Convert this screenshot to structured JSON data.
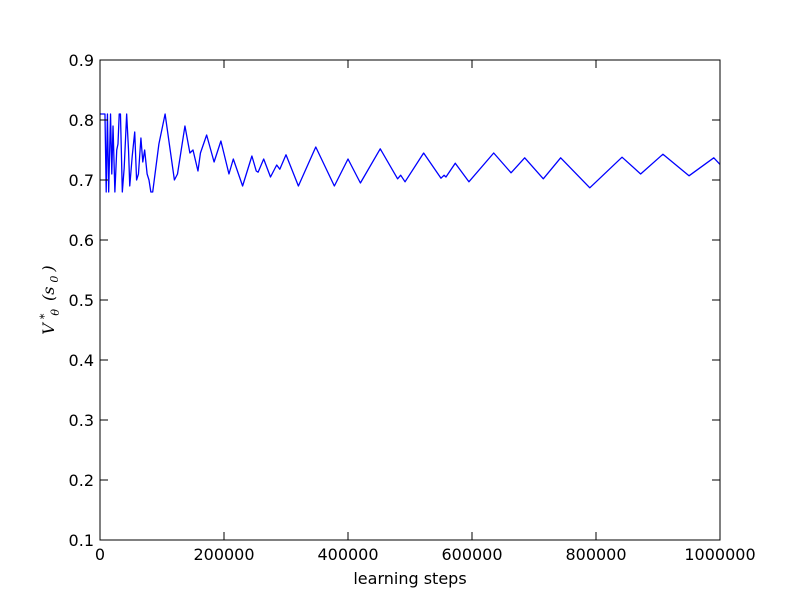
{
  "chart_data": {
    "type": "line",
    "title": "",
    "xlabel": "learning steps",
    "ylabel": {
      "symbol": "V",
      "superscript": "*",
      "subscript": "θ",
      "argument_open": "(s",
      "argument_subscript": "0",
      "argument_close": ")"
    },
    "xlim": [
      0,
      1000000
    ],
    "ylim": [
      0.1,
      0.9
    ],
    "xticks": [
      0,
      200000,
      400000,
      600000,
      800000,
      1000000
    ],
    "xtick_labels": [
      "0",
      "200000",
      "400000",
      "600000",
      "800000",
      "1000000"
    ],
    "yticks": [
      0.1,
      0.2,
      0.3,
      0.4,
      0.5,
      0.6,
      0.7,
      0.8,
      0.9
    ],
    "ytick_labels": [
      "0.1",
      "0.2",
      "0.3",
      "0.4",
      "0.5",
      "0.6",
      "0.7",
      "0.8",
      "0.9"
    ],
    "grid": false,
    "series": [
      {
        "color": "#0000ff",
        "points": [
          [
            0,
            0.81
          ],
          [
            8000,
            0.81
          ],
          [
            10000,
            0.68
          ],
          [
            12000,
            0.81
          ],
          [
            14000,
            0.68
          ],
          [
            17000,
            0.81
          ],
          [
            19000,
            0.71
          ],
          [
            21000,
            0.79
          ],
          [
            24000,
            0.68
          ],
          [
            27000,
            0.75
          ],
          [
            29000,
            0.76
          ],
          [
            31000,
            0.81
          ],
          [
            33000,
            0.81
          ],
          [
            36000,
            0.68
          ],
          [
            39000,
            0.72
          ],
          [
            43000,
            0.81
          ],
          [
            46000,
            0.75
          ],
          [
            48000,
            0.69
          ],
          [
            52000,
            0.74
          ],
          [
            56000,
            0.78
          ],
          [
            59000,
            0.7
          ],
          [
            62000,
            0.71
          ],
          [
            66000,
            0.77
          ],
          [
            69000,
            0.73
          ],
          [
            72000,
            0.75
          ],
          [
            76000,
            0.71
          ],
          [
            79000,
            0.7
          ],
          [
            82000,
            0.68
          ],
          [
            85000,
            0.68
          ],
          [
            95000,
            0.76
          ],
          [
            105000,
            0.81
          ],
          [
            120000,
            0.7
          ],
          [
            125000,
            0.71
          ],
          [
            137000,
            0.79
          ],
          [
            145000,
            0.745
          ],
          [
            150000,
            0.75
          ],
          [
            158000,
            0.715
          ],
          [
            162000,
            0.745
          ],
          [
            172000,
            0.775
          ],
          [
            184000,
            0.73
          ],
          [
            195000,
            0.765
          ],
          [
            208000,
            0.71
          ],
          [
            215000,
            0.735
          ],
          [
            230000,
            0.69
          ],
          [
            245000,
            0.74
          ],
          [
            252000,
            0.715
          ],
          [
            255000,
            0.713
          ],
          [
            264000,
            0.735
          ],
          [
            275000,
            0.705
          ],
          [
            285000,
            0.725
          ],
          [
            290000,
            0.718
          ],
          [
            300000,
            0.742
          ],
          [
            320000,
            0.69
          ],
          [
            348000,
            0.755
          ],
          [
            378000,
            0.69
          ],
          [
            400000,
            0.735
          ],
          [
            420000,
            0.695
          ],
          [
            452000,
            0.752
          ],
          [
            480000,
            0.702
          ],
          [
            485000,
            0.708
          ],
          [
            492000,
            0.697
          ],
          [
            522000,
            0.745
          ],
          [
            550000,
            0.703
          ],
          [
            555000,
            0.708
          ],
          [
            558000,
            0.705
          ],
          [
            573000,
            0.728
          ],
          [
            595000,
            0.697
          ],
          [
            635000,
            0.745
          ],
          [
            663000,
            0.712
          ],
          [
            685000,
            0.737
          ],
          [
            715000,
            0.702
          ],
          [
            743000,
            0.737
          ],
          [
            790000,
            0.687
          ],
          [
            842000,
            0.738
          ],
          [
            872000,
            0.71
          ],
          [
            908000,
            0.743
          ],
          [
            950000,
            0.707
          ],
          [
            990000,
            0.737
          ],
          [
            1000000,
            0.726
          ]
        ]
      }
    ]
  }
}
